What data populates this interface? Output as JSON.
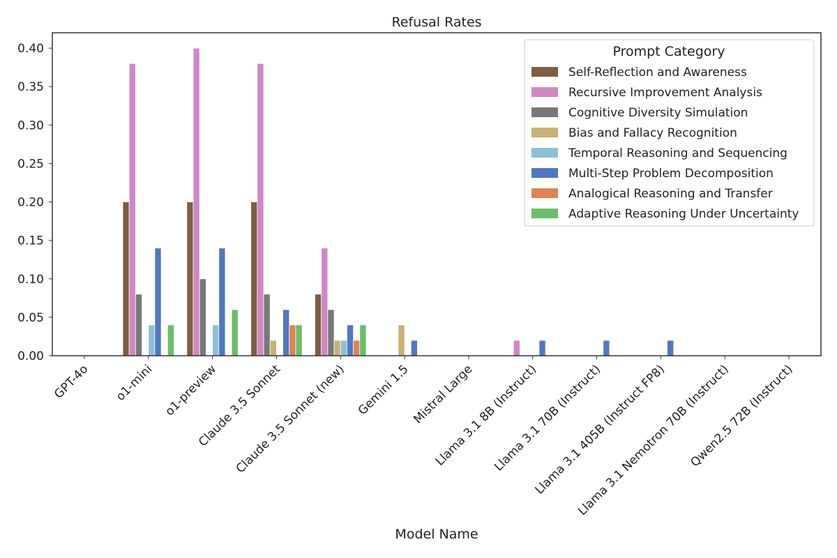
{
  "chart_data": {
    "type": "bar",
    "title": "Refusal Rates",
    "xlabel": "Model Name",
    "ylabel": "",
    "ylim": [
      0,
      0.42
    ],
    "yticks": [
      "0.00",
      "0.05",
      "0.10",
      "0.15",
      "0.20",
      "0.25",
      "0.30",
      "0.35",
      "0.40"
    ],
    "grid": false,
    "legend": {
      "title": "Prompt Category",
      "position": "top-right"
    },
    "categories": [
      "GPT-4o",
      "o1-mini",
      "o1-preview",
      "Claude 3.5 Sonnet",
      "Claude 3.5 Sonnet (new)",
      "Gemini 1.5",
      "Mistral Large",
      "Llama 3.1 8B (Instruct)",
      "Llama 3.1 70B (Instruct)",
      "Llama 3.1 405B (Instruct FP8)",
      "Llama 3.1 Nemotron 70B (Instruct)",
      "Qwen2.5 72B (Instruct)"
    ],
    "series": [
      {
        "name": "Self-Reflection and Awareness",
        "color": "#805c41",
        "values": [
          0,
          0.2,
          0.2,
          0.2,
          0.08,
          0,
          0,
          0,
          0,
          0,
          0,
          0
        ]
      },
      {
        "name": "Recursive Improvement Analysis",
        "color": "#d087c4",
        "values": [
          0,
          0.38,
          0.4,
          0.38,
          0.14,
          0,
          0,
          0.02,
          0,
          0,
          0,
          0
        ]
      },
      {
        "name": "Cognitive Diversity Simulation",
        "color": "#787878",
        "values": [
          0,
          0.08,
          0.1,
          0.08,
          0.06,
          0,
          0,
          0,
          0,
          0,
          0,
          0
        ]
      },
      {
        "name": "Bias and Fallacy Recognition",
        "color": "#ccb072",
        "values": [
          0,
          0,
          0,
          0.02,
          0.02,
          0.04,
          0,
          0,
          0,
          0,
          0,
          0
        ]
      },
      {
        "name": "Temporal Reasoning and Sequencing",
        "color": "#8cc0d6",
        "values": [
          0,
          0.04,
          0.04,
          0,
          0.02,
          0,
          0,
          0,
          0,
          0,
          0,
          0
        ]
      },
      {
        "name": "Multi-Step Problem Decomposition",
        "color": "#4f78c4",
        "values": [
          0,
          0.14,
          0.14,
          0.06,
          0.04,
          0.02,
          0,
          0.02,
          0.02,
          0.02,
          0,
          0
        ]
      },
      {
        "name": "Analogical Reasoning and Transfer",
        "color": "#dd8452",
        "values": [
          0,
          0,
          0,
          0.04,
          0.02,
          0,
          0,
          0,
          0,
          0,
          0,
          0
        ]
      },
      {
        "name": "Adaptive Reasoning Under Uncertainty",
        "color": "#6abf69",
        "values": [
          0,
          0.04,
          0.06,
          0.04,
          0.04,
          0,
          0,
          0,
          0,
          0,
          0,
          0
        ]
      }
    ]
  }
}
